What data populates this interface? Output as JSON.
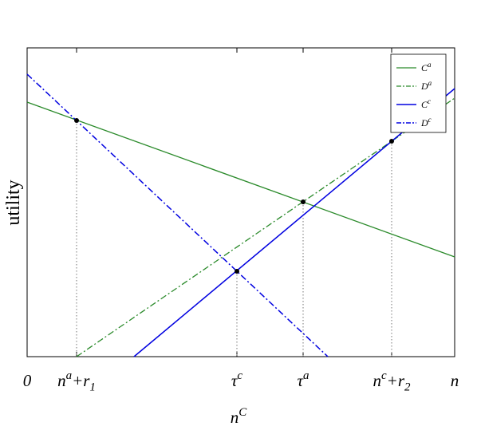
{
  "axis_labels": {
    "y": "utility",
    "x": {
      "base": "n",
      "sup": "C"
    }
  },
  "x_tick_labels": [
    {
      "base": "0"
    },
    {
      "base": "n",
      "sup": "a",
      "mid": "+r",
      "sub": "1"
    },
    {
      "base": "τ",
      "sup": "c"
    },
    {
      "base": "τ",
      "sup": "a"
    },
    {
      "base": "n",
      "sup": "c",
      "mid": "+r",
      "sub": "2"
    },
    {
      "base": "n"
    }
  ],
  "legend": [
    {
      "base": "C",
      "sup": "a"
    },
    {
      "base": "D",
      "sup": "a"
    },
    {
      "base": "C",
      "sup": "c"
    },
    {
      "base": "D",
      "sup": "c"
    }
  ]
}
